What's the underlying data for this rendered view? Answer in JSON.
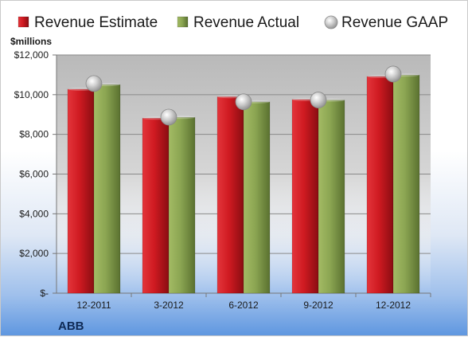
{
  "chart_data": {
    "type": "bar",
    "title": "",
    "unit_label": "$millions",
    "company": "ABB",
    "categories": [
      "12-2011",
      "3-2012",
      "6-2012",
      "9-2012",
      "12-2012"
    ],
    "series": [
      {
        "name": "Revenue Estimate",
        "kind": "bar",
        "color": "#c8161d",
        "values": [
          10280,
          8820,
          9900,
          9760,
          10920
        ]
      },
      {
        "name": "Revenue Actual",
        "kind": "bar",
        "color": "#7f9a45",
        "values": [
          10510,
          8860,
          9640,
          9730,
          10990
        ]
      },
      {
        "name": "Revenue GAAP",
        "kind": "marker",
        "color": "#b5b5b5",
        "values": [
          10560,
          8870,
          9640,
          9730,
          11040
        ]
      }
    ],
    "ylim": [
      0,
      12000
    ],
    "yticks": [
      0,
      2000,
      4000,
      6000,
      8000,
      10000,
      12000
    ],
    "ytick_labels": [
      "$-",
      "$2,000",
      "$4,000",
      "$6,000",
      "$8,000",
      "$10,000",
      "$12,000"
    ],
    "grid": true,
    "legend_position": "top"
  }
}
